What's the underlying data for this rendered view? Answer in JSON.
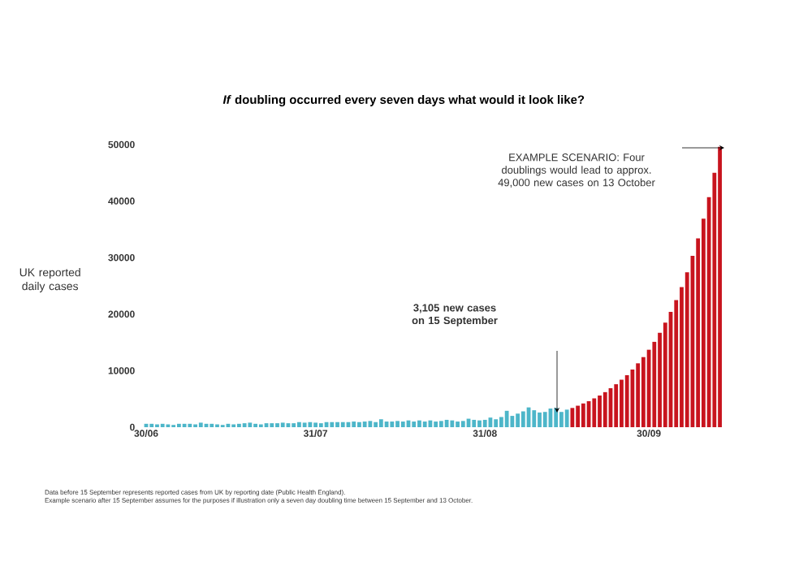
{
  "chart_data": {
    "type": "bar",
    "title": "*If* doubling occurred every seven days what would it look like?",
    "ylabel": "UK reported daily cases",
    "categories": [
      "30/06",
      null,
      null,
      null,
      null,
      null,
      null,
      null,
      null,
      null,
      null,
      null,
      null,
      null,
      null,
      null,
      null,
      null,
      null,
      null,
      null,
      null,
      null,
      null,
      null,
      null,
      null,
      null,
      null,
      null,
      null,
      "31/07",
      null,
      null,
      null,
      null,
      null,
      null,
      null,
      null,
      null,
      null,
      null,
      null,
      null,
      null,
      null,
      null,
      null,
      null,
      null,
      null,
      null,
      null,
      null,
      null,
      null,
      null,
      null,
      null,
      null,
      null,
      "31/08",
      null,
      null,
      null,
      null,
      null,
      null,
      null,
      null,
      null,
      null,
      null,
      null,
      null,
      null,
      null,
      null,
      null,
      null,
      null,
      null,
      null,
      null,
      null,
      null,
      null,
      null,
      null,
      null,
      null,
      "30/09",
      null,
      null,
      null,
      null,
      null,
      null,
      null,
      null,
      null,
      null,
      null,
      null,
      null
    ],
    "series": [
      {
        "color": "#4db6c9",
        "values": [
          600,
          600,
          500,
          600,
          500,
          400,
          600,
          600,
          600,
          500,
          800,
          600,
          600,
          500,
          400,
          600,
          500,
          600,
          700,
          800,
          600,
          500,
          700,
          700,
          700,
          800,
          700,
          700,
          900,
          800,
          900,
          800,
          700,
          900,
          900,
          900,
          900,
          900,
          1000,
          900,
          1000,
          1100,
          900,
          1400,
          1000,
          1000,
          1100,
          1000,
          1200,
          1000,
          1200,
          1000,
          1200,
          1000,
          1100,
          1300,
          1200,
          1000,
          1100,
          1500,
          1300,
          1200,
          1300,
          1700,
          1400,
          1800,
          2900,
          2000,
          2400,
          2800,
          3500,
          3000,
          2600,
          2700,
          3300,
          3400,
          2700,
          3105,
          null,
          null,
          null,
          null,
          null,
          null,
          null,
          null,
          null,
          null,
          null,
          null,
          null,
          null,
          null,
          null,
          null,
          null,
          null,
          null,
          null,
          null,
          null,
          null,
          null,
          null,
          null,
          null
        ]
      },
      {
        "color": "#c8141e",
        "values": [
          null,
          null,
          null,
          null,
          null,
          null,
          null,
          null,
          null,
          null,
          null,
          null,
          null,
          null,
          null,
          null,
          null,
          null,
          null,
          null,
          null,
          null,
          null,
          null,
          null,
          null,
          null,
          null,
          null,
          null,
          null,
          null,
          null,
          null,
          null,
          null,
          null,
          null,
          null,
          null,
          null,
          null,
          null,
          null,
          null,
          null,
          null,
          null,
          null,
          null,
          null,
          null,
          null,
          null,
          null,
          null,
          null,
          null,
          null,
          null,
          null,
          null,
          null,
          null,
          null,
          null,
          null,
          null,
          null,
          null,
          null,
          null,
          null,
          null,
          null,
          null,
          null,
          null,
          3400,
          3800,
          4200,
          4600,
          5100,
          5600,
          6200,
          6900,
          7600,
          8400,
          9200,
          10200,
          11300,
          12400,
          13700,
          15100,
          16700,
          18500,
          20400,
          22500,
          24800,
          27400,
          30300,
          33400,
          36900,
          40700,
          45000,
          49600
        ]
      }
    ],
    "ylim": [
      0,
      50000
    ],
    "yticks": [
      0,
      10000,
      20000,
      30000,
      40000,
      50000
    ],
    "grid": false,
    "annotations": [
      "EXAMPLE SCENARIO: Four doublings would lead to approx. 49,000 new cases on 13 October",
      "3,105 new cases on 15 September",
      "Data before 15 September represents reported cases from UK by reporting date (Public Health England).",
      "Example scenario after 15 September assumes for the purposes if illustration only a seven day doubling time between 15 September and 13 October."
    ]
  }
}
